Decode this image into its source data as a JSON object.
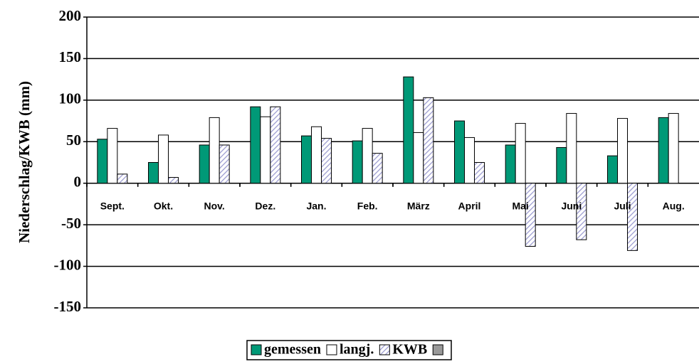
{
  "chart_data": {
    "type": "bar",
    "y_label": "Niederschlag/KWB (mm)",
    "categories": [
      "Sept.",
      "Okt.",
      "Nov.",
      "Dez.",
      "Jan.",
      "Feb.",
      "März",
      "April",
      "Mai",
      "Juni",
      "Juli",
      "Aug."
    ],
    "series": [
      {
        "name": "gemessen",
        "color": "#009977",
        "values": [
          53,
          25,
          46,
          92,
          57,
          51,
          128,
          75,
          46,
          43,
          33,
          79
        ]
      },
      {
        "name": "langj.",
        "color": "#ffffff",
        "values": [
          66,
          58,
          79,
          80,
          68,
          66,
          61,
          55,
          72,
          84,
          78,
          84
        ]
      },
      {
        "name": "KWB",
        "color": "#9a9ad0",
        "pattern": "hatch",
        "values": [
          11,
          7,
          46,
          92,
          54,
          36,
          103,
          25,
          -76,
          -68,
          -81,
          null
        ]
      }
    ],
    "ylim": [
      -150,
      200
    ],
    "yticks": [
      -150,
      -100,
      -50,
      0,
      50,
      100,
      150,
      200
    ],
    "grid": true,
    "legend": "bottom"
  }
}
